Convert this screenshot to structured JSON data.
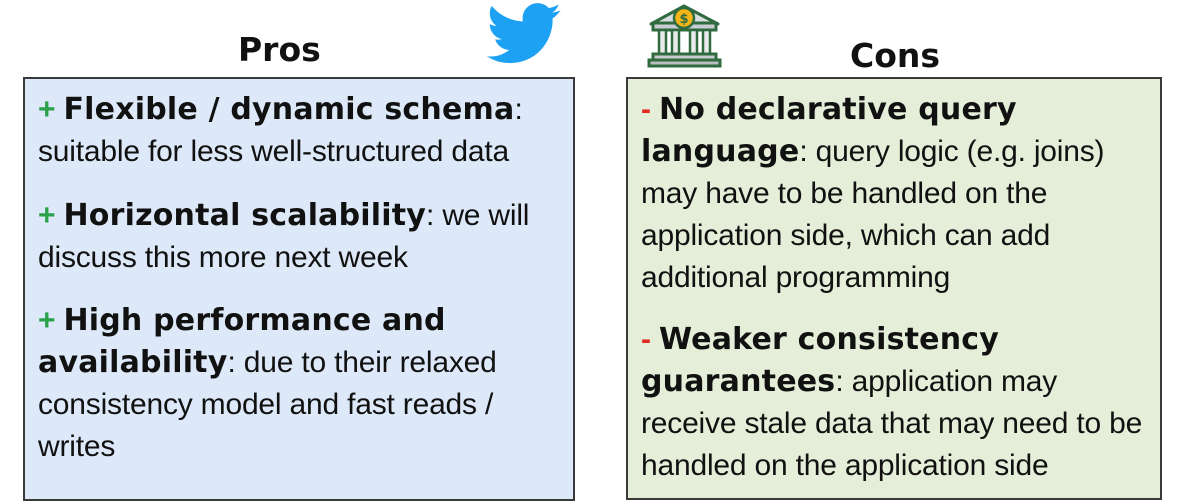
{
  "headings": {
    "pros": "Pros",
    "cons": "Cons"
  },
  "icons": {
    "twitter": "twitter-bird-icon",
    "bank": "bank-dollar-icon",
    "twitter_color": "#1da1f2",
    "bank_color": "#2f6b3e",
    "coin_color": "#f5b516"
  },
  "colors": {
    "pros_bg": "#dde9f8",
    "cons_bg": "#e5eed8",
    "plus": "#2aa14a",
    "minus": "#e02a1f"
  },
  "pros": [
    {
      "marker": "+",
      "title": "Flexible / dynamic schema",
      "text": ": suitable for less well-structured data"
    },
    {
      "marker": "+",
      "title": "Horizontal scalability",
      "text": ": we will discuss this more next week"
    },
    {
      "marker": "+",
      "title": "High performance and availability",
      "text": ": due to their relaxed consistency model and fast reads / writes"
    }
  ],
  "cons": [
    {
      "marker": "-",
      "title": "No declarative query language",
      "text": ": query logic (e.g. joins) may have to be handled on the application side, which can add additional programming"
    },
    {
      "marker": "-",
      "title": "Weaker consistency guarantees",
      "text": ": application may receive stale data that may need to be handled on the application side"
    }
  ]
}
